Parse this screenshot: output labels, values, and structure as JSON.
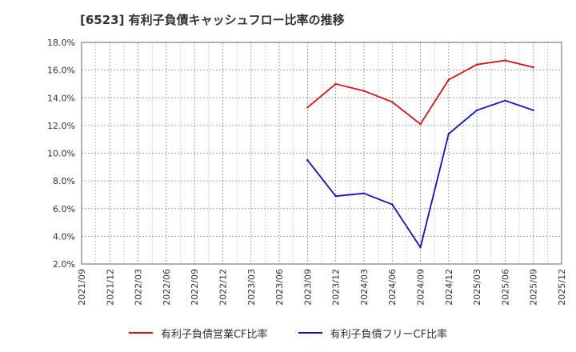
{
  "chart_data": {
    "type": "line",
    "title": "[6523]  有利子負債キャッシュフロー比率の推移",
    "xlabel": "",
    "ylabel": "",
    "ylim": [
      2.0,
      18.0
    ],
    "yticks": [
      "2.0%",
      "4.0%",
      "6.0%",
      "8.0%",
      "10.0%",
      "12.0%",
      "14.0%",
      "16.0%",
      "18.0%"
    ],
    "categories": [
      "2021/09",
      "2021/12",
      "2022/03",
      "2022/06",
      "2022/09",
      "2022/12",
      "2023/03",
      "2023/06",
      "2023/09",
      "2023/12",
      "2024/03",
      "2024/06",
      "2024/09",
      "2024/12",
      "2025/03",
      "2025/06",
      "2025/09",
      "2025/12"
    ],
    "series": [
      {
        "name": "有利子負債営業CF比率",
        "color": "#dd1111",
        "values": [
          null,
          null,
          null,
          null,
          null,
          null,
          null,
          null,
          13.3,
          15.0,
          14.5,
          13.7,
          12.1,
          15.3,
          16.4,
          16.7,
          16.2,
          null
        ]
      },
      {
        "name": "有利子負債フリーCF比率",
        "color": "#1111cc",
        "values": [
          null,
          null,
          null,
          null,
          null,
          null,
          null,
          null,
          9.5,
          6.9,
          7.1,
          6.3,
          3.2,
          11.4,
          13.1,
          13.8,
          13.1,
          null
        ]
      }
    ],
    "grid": true,
    "legend_position": "bottom"
  }
}
